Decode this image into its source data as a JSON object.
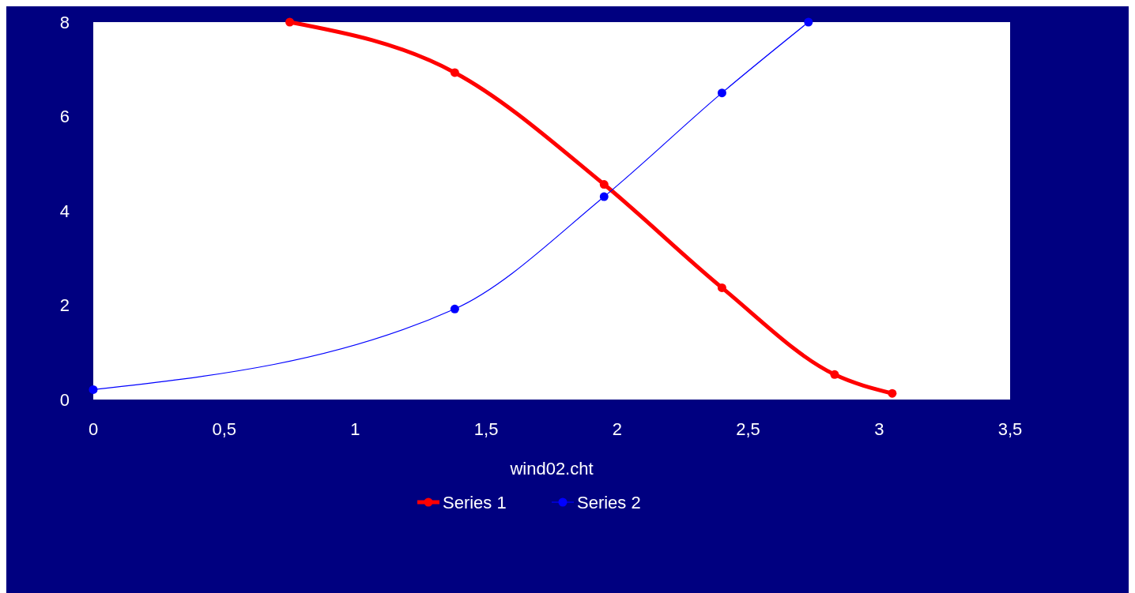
{
  "chart_data": {
    "type": "line",
    "xlabel": "wind02.cht",
    "xlim": [
      0,
      3.5
    ],
    "ylim": [
      0,
      8
    ],
    "xticks": [
      0,
      {
        "value": 0.5,
        "label": "0,5"
      },
      1,
      {
        "value": 1.5,
        "label": "1,5"
      },
      2,
      {
        "value": 2.5,
        "label": "2,5"
      },
      3,
      {
        "value": 3.5,
        "label": "3,5"
      }
    ],
    "yticks": [
      0,
      2,
      4,
      6,
      8
    ],
    "grid": false,
    "legend": "bottom",
    "marker": "circle",
    "line_style": "solid",
    "series": [
      {
        "name": "Series 1",
        "color": "#ff0000",
        "x": [
          0.75,
          1.38,
          1.95,
          2.4,
          2.83,
          3.05
        ],
        "values": [
          8,
          6.93,
          4.56,
          2.37,
          0.53,
          0.13
        ]
      },
      {
        "name": "Series 2",
        "color": "#0000ff",
        "x": [
          0,
          1.38,
          1.95,
          2.4,
          2.73
        ],
        "values": [
          0.21,
          1.92,
          4.3,
          6.5,
          8
        ]
      }
    ]
  }
}
